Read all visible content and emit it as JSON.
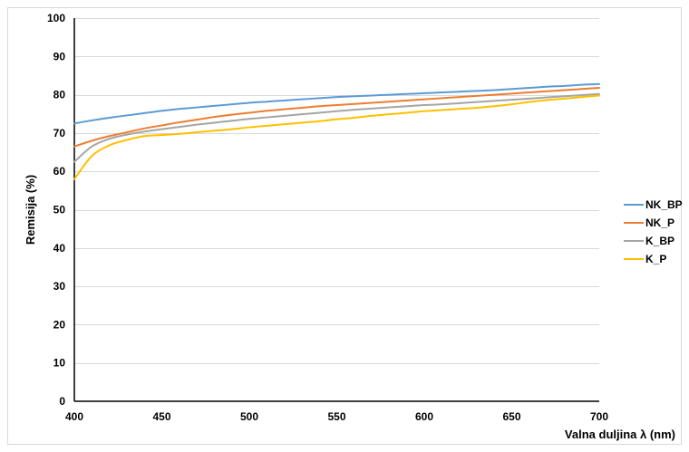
{
  "chart_data": {
    "type": "line",
    "title": "",
    "xlabel": "Valna duljina λ (nm)",
    "ylabel": "Remisija (%)",
    "xlim": [
      400,
      700
    ],
    "ylim": [
      0,
      100
    ],
    "xticks": [
      400,
      450,
      500,
      550,
      600,
      650,
      700
    ],
    "yticks": [
      0,
      10,
      20,
      30,
      40,
      50,
      60,
      70,
      80,
      90,
      100
    ],
    "grid": true,
    "legend_position": "right",
    "x": [
      400,
      410,
      420,
      430,
      440,
      450,
      460,
      470,
      480,
      490,
      500,
      510,
      520,
      530,
      540,
      550,
      560,
      570,
      580,
      590,
      600,
      610,
      620,
      630,
      640,
      650,
      660,
      670,
      680,
      690,
      700
    ],
    "series": [
      {
        "name": "NK_BP",
        "color": "#5b9bd5",
        "values": [
          72.5,
          73.3,
          74.0,
          74.6,
          75.2,
          75.8,
          76.3,
          76.7,
          77.1,
          77.5,
          77.9,
          78.2,
          78.5,
          78.8,
          79.1,
          79.4,
          79.6,
          79.8,
          80.0,
          80.2,
          80.4,
          80.6,
          80.8,
          81.0,
          81.2,
          81.5,
          81.8,
          82.1,
          82.3,
          82.6,
          82.8
        ]
      },
      {
        "name": "NK_P",
        "color": "#ed7d31",
        "values": [
          66.5,
          68.0,
          69.2,
          70.2,
          71.2,
          72.0,
          72.8,
          73.5,
          74.2,
          74.8,
          75.3,
          75.8,
          76.2,
          76.6,
          77.0,
          77.3,
          77.6,
          77.9,
          78.2,
          78.5,
          78.8,
          79.1,
          79.4,
          79.7,
          80.0,
          80.3,
          80.6,
          80.9,
          81.2,
          81.5,
          81.8
        ]
      },
      {
        "name": "K_BP",
        "color": "#a5a5a5",
        "values": [
          62.5,
          66.5,
          68.5,
          69.6,
          70.4,
          71.0,
          71.6,
          72.2,
          72.7,
          73.2,
          73.7,
          74.1,
          74.5,
          74.9,
          75.3,
          75.7,
          76.1,
          76.4,
          76.7,
          77.0,
          77.3,
          77.5,
          77.8,
          78.1,
          78.4,
          78.7,
          79.0,
          79.3,
          79.6,
          79.9,
          80.2
        ]
      },
      {
        "name": "K_P",
        "color": "#ffc000",
        "values": [
          58.0,
          64.0,
          66.8,
          68.2,
          69.2,
          69.5,
          69.8,
          70.2,
          70.6,
          71.0,
          71.5,
          71.9,
          72.3,
          72.7,
          73.1,
          73.6,
          74.0,
          74.5,
          74.9,
          75.3,
          75.7,
          76.0,
          76.3,
          76.6,
          77.0,
          77.5,
          78.1,
          78.6,
          79.0,
          79.4,
          79.8
        ]
      }
    ]
  }
}
